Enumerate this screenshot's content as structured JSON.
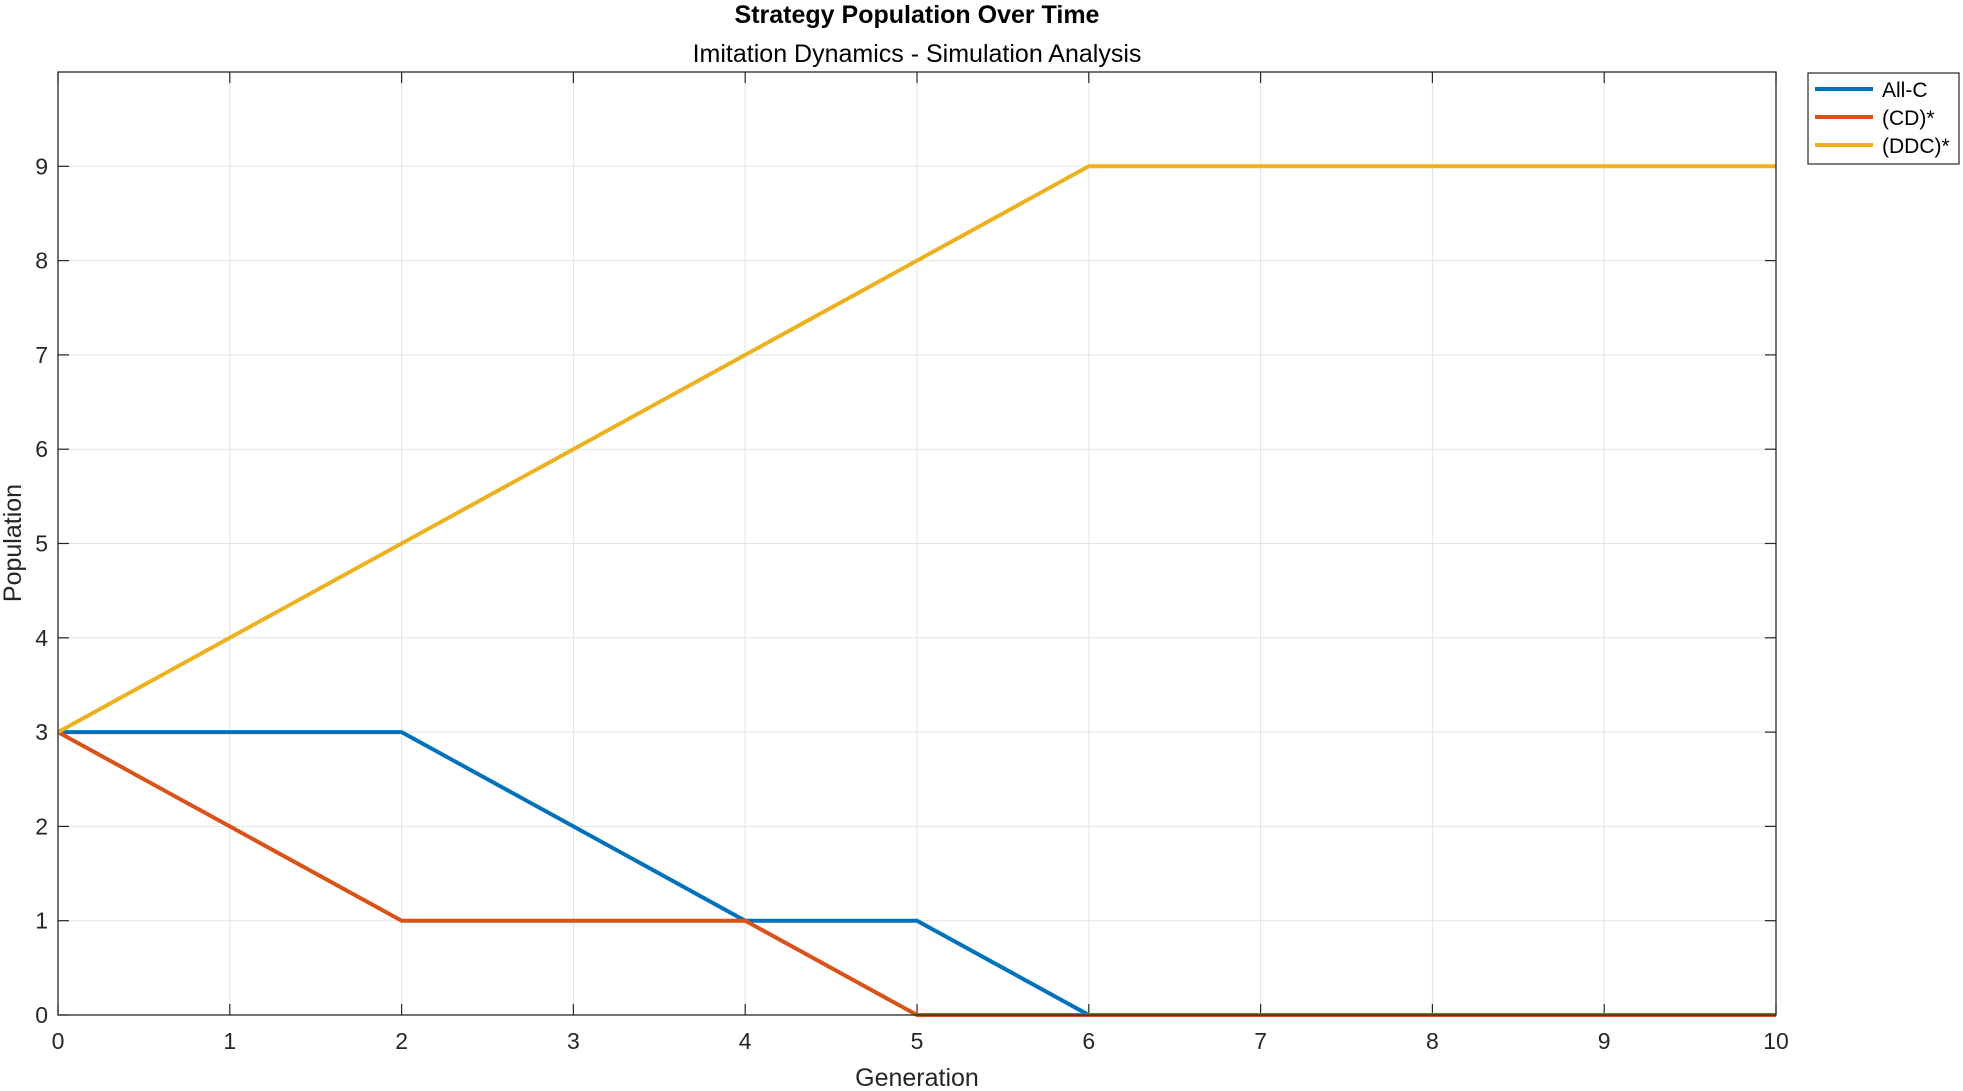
{
  "chart_data": {
    "type": "line",
    "title": "Strategy Population Over Time",
    "subtitle": "Imitation Dynamics - Simulation Analysis",
    "xlabel": "Generation",
    "ylabel": "Population",
    "xlim": [
      0,
      10
    ],
    "ylim": [
      0,
      10
    ],
    "xticks": [
      0,
      1,
      2,
      3,
      4,
      5,
      6,
      7,
      8,
      9,
      10
    ],
    "yticks": [
      0,
      1,
      2,
      3,
      4,
      5,
      6,
      7,
      8,
      9
    ],
    "grid": true,
    "legend_position": "outside-top-right",
    "x": [
      0,
      1,
      2,
      3,
      4,
      5,
      6,
      7,
      8,
      9,
      10
    ],
    "series": [
      {
        "name": "All-C",
        "color": "#0072BD",
        "values": [
          3,
          3,
          3,
          2,
          1,
          1,
          0,
          0,
          0,
          0,
          0
        ]
      },
      {
        "name": "(CD)*",
        "color": "#D95319",
        "values": [
          3,
          2,
          1,
          1,
          1,
          0,
          0,
          0,
          0,
          0,
          0
        ]
      },
      {
        "name": "(DDC)*",
        "color": "#EDB120",
        "values": [
          3,
          4,
          5,
          6,
          7,
          8,
          9,
          9,
          9,
          9,
          9
        ]
      }
    ]
  }
}
